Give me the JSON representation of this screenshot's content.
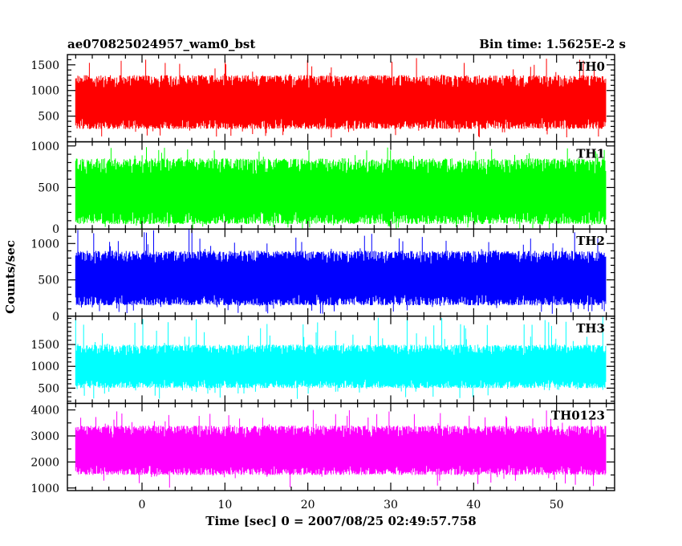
{
  "chart_data": {
    "type": "line",
    "title_left": "ae070825024957_wam0_bst",
    "title_right": "Bin time: 1.5625E-2 s",
    "xlabel": "Time [sec] 0 = 2007/08/25 02:49:57.758",
    "ylabel": "Counts/sec",
    "xlim": [
      -9,
      57
    ],
    "data_x_range": [
      -8,
      56
    ],
    "xticks": [
      0,
      10,
      20,
      30,
      40,
      50
    ],
    "x_minor_step": 2,
    "panels": [
      {
        "name": "TH0",
        "color": "#ff0000",
        "ylim": [
          0,
          1700
        ],
        "yticks": [
          500,
          1000,
          1500
        ],
        "y_minor_step": 100,
        "typical_min": 250,
        "typical_max": 1300,
        "extreme_min": 80,
        "extreme_max": 1650
      },
      {
        "name": "TH1",
        "color": "#00ff00",
        "ylim": [
          0,
          1050
        ],
        "yticks": [
          0,
          500,
          1000
        ],
        "y_minor_step": 100,
        "typical_min": 60,
        "typical_max": 850,
        "extreme_min": 0,
        "extreme_max": 1000
      },
      {
        "name": "TH2",
        "color": "#0000ff",
        "ylim": [
          0,
          1200
        ],
        "yticks": [
          0,
          500,
          1000
        ],
        "y_minor_step": 100,
        "typical_min": 150,
        "typical_max": 900,
        "extreme_min": 30,
        "extreme_max": 1200
      },
      {
        "name": "TH3",
        "color": "#00ffff",
        "ylim": [
          150,
          2150
        ],
        "yticks": [
          500,
          1000,
          1500
        ],
        "y_minor_step": 100,
        "typical_min": 500,
        "typical_max": 1500,
        "extreme_min": 250,
        "extreme_max": 2150
      },
      {
        "name": "TH0123",
        "color": "#ff00ff",
        "ylim": [
          900,
          4250
        ],
        "yticks": [
          1000,
          2000,
          3000,
          4000
        ],
        "y_minor_step": 500,
        "typical_min": 1500,
        "typical_max": 3400,
        "extreme_min": 1000,
        "extreme_max": 4000
      }
    ]
  }
}
